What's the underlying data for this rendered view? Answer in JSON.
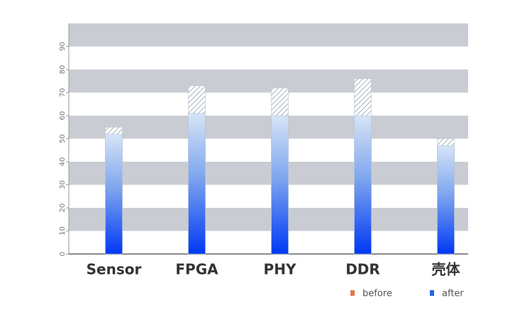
{
  "chart_data": {
    "type": "bar",
    "categories": [
      "Sensor",
      "FPGA",
      "PHY",
      "DDR",
      "壳体"
    ],
    "series": [
      {
        "name": "before",
        "color": "#e07a4a",
        "values": [
          55,
          73,
          72,
          76,
          50
        ]
      },
      {
        "name": "after",
        "color": "#2a63e6",
        "values": [
          52,
          61,
          60,
          60,
          47
        ]
      }
    ],
    "ylim": [
      0,
      100
    ],
    "yticks": [
      0,
      10,
      20,
      30,
      40,
      50,
      60,
      70,
      80,
      90
    ],
    "grid": true,
    "legend": "bottom-right"
  }
}
